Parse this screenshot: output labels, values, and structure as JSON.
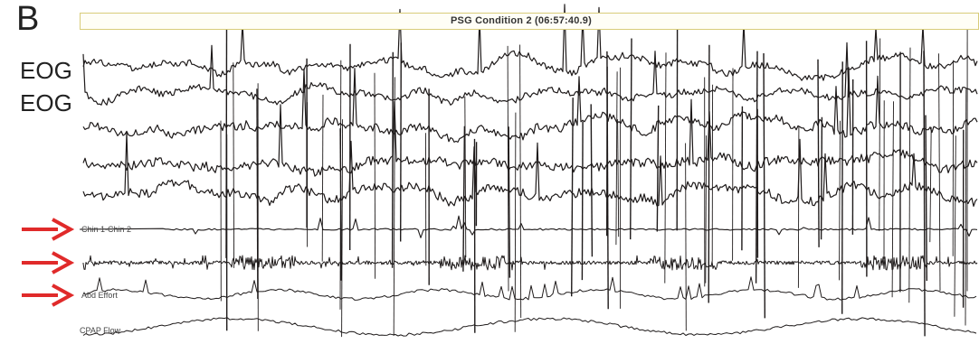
{
  "figure": {
    "panel_letter": "B",
    "header_text": "PSG Condition 2 (06:57:40.9)",
    "side_labels": [
      "EOG",
      "EOG"
    ],
    "channel_labels": {
      "chin": "Chin 1-Chin 2",
      "abdomen": "Abd Effort",
      "cpap": "CPAP Flow"
    },
    "arrow_color": "#e02a2a",
    "trace_color": "#1e1a1a",
    "arrows": 3
  }
}
